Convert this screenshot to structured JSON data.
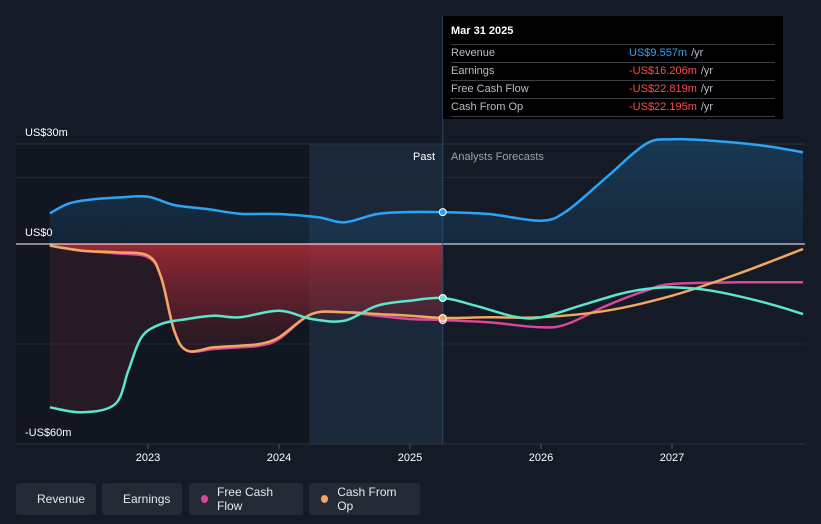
{
  "chart_data": {
    "type": "line",
    "y_axis": {
      "top_label": "US$30m",
      "zero_label": "US$0",
      "bottom_label": "-US$60m",
      "ylim": [
        -60,
        30
      ]
    },
    "x_axis": {
      "ticks": [
        "2023",
        "2024",
        "2025",
        "2026",
        "2027"
      ],
      "xlim": [
        2022.22,
        2028.0
      ]
    },
    "past_label": "Past",
    "forecast_label": "Analysts Forecasts",
    "tooltip": {
      "date": "Mar 31 2025",
      "rows": [
        {
          "label": "Revenue",
          "value": "US$9.557m",
          "unit": "/yr",
          "color": "#2aa5f5"
        },
        {
          "label": "Earnings",
          "value": "-US$16.206m",
          "unit": "/yr",
          "color": "#ff4d4d"
        },
        {
          "label": "Free Cash Flow",
          "value": "-US$22.819m",
          "unit": "/yr",
          "color": "#ff4d4d"
        },
        {
          "label": "Cash From Op",
          "value": "-US$22.195m",
          "unit": "/yr",
          "color": "#ff4d4d"
        }
      ]
    },
    "series": [
      {
        "name": "Revenue",
        "color": "#2aa5f5",
        "x": [
          2022.25,
          2022.4,
          2022.6,
          2022.8,
          2023.0,
          2023.2,
          2023.45,
          2023.7,
          2024.0,
          2024.3,
          2024.5,
          2024.75,
          2025.0,
          2025.25,
          2025.6,
          2026.0,
          2026.2,
          2026.5,
          2026.8,
          2027.0,
          2027.3,
          2027.7,
          2028.0
        ],
        "y": [
          9.2,
          12.2,
          13.5,
          14.0,
          14.2,
          11.7,
          10.5,
          9.1,
          9.0,
          8.0,
          6.5,
          9.0,
          9.6,
          9.56,
          9.0,
          7.0,
          10.0,
          20.0,
          30.0,
          31.4,
          31.0,
          29.5,
          27.5
        ]
      },
      {
        "name": "Earnings",
        "color": "#5ce6cc",
        "x": [
          2022.25,
          2022.5,
          2022.75,
          2022.85,
          2022.95,
          2023.1,
          2023.3,
          2023.5,
          2023.7,
          2024.0,
          2024.25,
          2024.5,
          2024.75,
          2025.0,
          2025.25,
          2025.5,
          2025.8,
          2026.0,
          2026.3,
          2026.6,
          2026.8,
          2027.0,
          2027.3,
          2027.7,
          2028.0
        ],
        "y": [
          -49.0,
          -50.5,
          -48.0,
          -38.0,
          -28.0,
          -24.0,
          -22.5,
          -21.5,
          -22.0,
          -20.0,
          -22.5,
          -23.0,
          -18.5,
          -17.0,
          -16.2,
          -18.5,
          -21.8,
          -22.0,
          -18.5,
          -15.0,
          -13.5,
          -13.0,
          -14.0,
          -17.5,
          -21.0
        ]
      },
      {
        "name": "Free Cash Flow",
        "color": "#d9479a",
        "x": [
          2022.25,
          2022.5,
          2022.75,
          2023.0,
          2023.1,
          2023.2,
          2023.3,
          2023.5,
          2023.7,
          2023.85,
          2024.0,
          2024.25,
          2024.5,
          2024.75,
          2025.0,
          2025.25,
          2025.6,
          2026.0,
          2026.2,
          2026.5,
          2026.8,
          2027.0,
          2027.5,
          2028.0
        ],
        "y": [
          -0.5,
          -2.0,
          -2.8,
          -4.0,
          -10.0,
          -26.0,
          -32.0,
          -31.5,
          -31.0,
          -30.5,
          -28.5,
          -21.0,
          -20.5,
          -21.5,
          -22.5,
          -22.8,
          -23.5,
          -25.0,
          -24.0,
          -18.5,
          -14.0,
          -12.0,
          -11.5,
          -11.5
        ]
      },
      {
        "name": "Cash From Op",
        "color": "#f0a860",
        "x": [
          2022.25,
          2022.5,
          2022.75,
          2023.0,
          2023.1,
          2023.2,
          2023.3,
          2023.5,
          2023.7,
          2023.85,
          2024.0,
          2024.25,
          2024.5,
          2024.75,
          2025.0,
          2025.25,
          2025.6,
          2026.0,
          2026.5,
          2027.0,
          2027.5,
          2028.0
        ],
        "y": [
          -0.5,
          -2.0,
          -2.5,
          -3.5,
          -10.0,
          -26.0,
          -32.0,
          -31.0,
          -30.5,
          -30.0,
          -28.0,
          -21.0,
          -20.5,
          -21.0,
          -21.5,
          -22.2,
          -22.0,
          -22.0,
          -20.0,
          -15.5,
          -9.0,
          -1.5
        ]
      }
    ]
  },
  "legend": [
    {
      "label": "Revenue",
      "color": "#2aa5f5"
    },
    {
      "label": "Earnings",
      "color": "#5ce6cc"
    },
    {
      "label": "Free Cash Flow",
      "color": "#d9479a"
    },
    {
      "label": "Cash From Op",
      "color": "#f0a860"
    }
  ]
}
